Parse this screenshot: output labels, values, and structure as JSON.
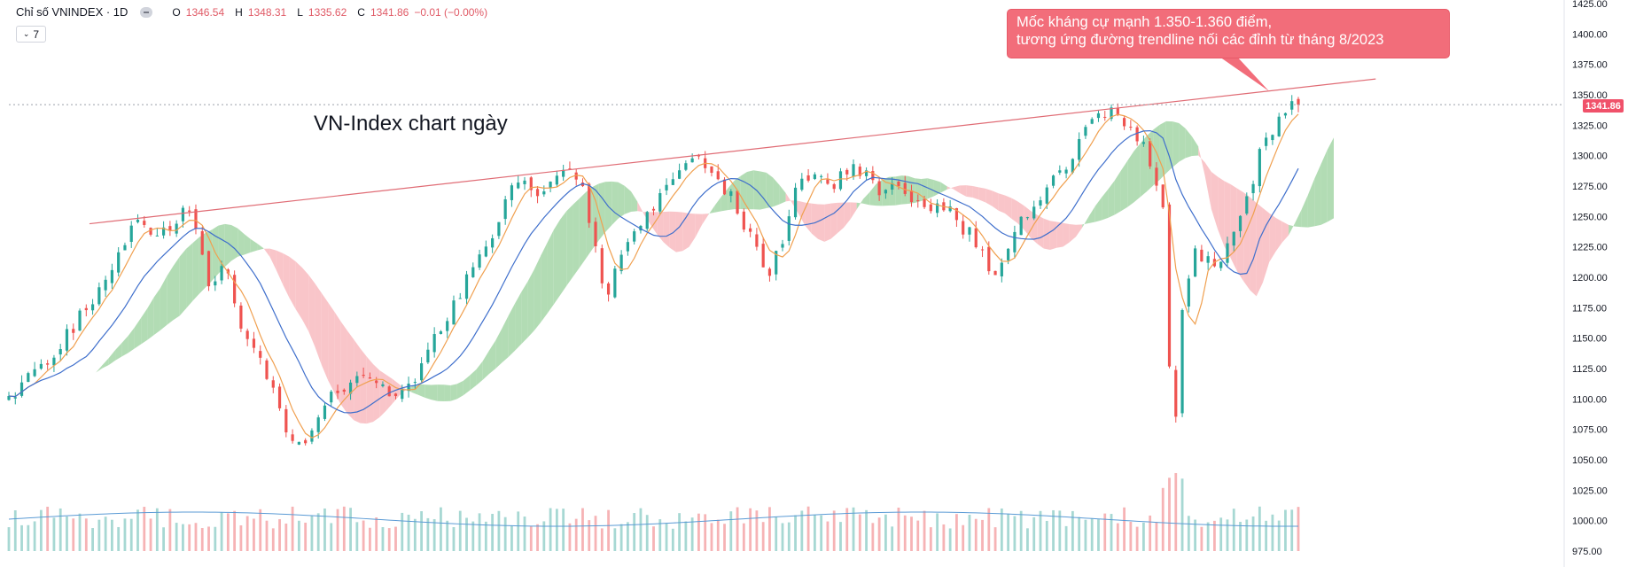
{
  "legend": {
    "symbol": "Chỉ số VNINDEX · 1D",
    "open_label": "O",
    "open": "1346.54",
    "high_label": "H",
    "high": "1348.31",
    "low_label": "L",
    "low": "1335.62",
    "close_label": "C",
    "close": "1341.86",
    "change": "−0.01 (−0.00%)"
  },
  "indicator_button": {
    "count": "7",
    "icon": "chevron-down-icon"
  },
  "watermark": "VN-Index chart ngày",
  "annotation": {
    "line1": "Mốc kháng cự mạnh 1.350-1.360 điểm,",
    "line2": "tương ứng đường trendline nối các đỉnh từ tháng 8/2023"
  },
  "last_price_label": "1341.86",
  "colors": {
    "up": "#26a69a",
    "down": "#ef5350",
    "up_cloud": "#a5d6a7",
    "down_cloud": "#f8bbc0",
    "ma_short": "#f0a050",
    "ma_long": "#3f6fcc",
    "trendline": "#e06c75",
    "callout": "#f26d7a"
  },
  "chart_data": {
    "type": "candlestick",
    "title": "Chỉ số VNINDEX · 1D",
    "ylim": [
      975,
      1425
    ],
    "y_ticks": [
      "1425.00",
      "1400.00",
      "1375.00",
      "1350.00",
      "1325.00",
      "1300.00",
      "1275.00",
      "1250.00",
      "1225.00",
      "1200.00",
      "1175.00",
      "1150.00",
      "1125.00",
      "1100.00",
      "1075.00",
      "1050.00",
      "1025.00",
      "1000.00",
      "975.00"
    ],
    "last_close": 1341.86,
    "close_path_anchors": [
      [
        0,
        1100
      ],
      [
        14,
        1125
      ],
      [
        28,
        1135
      ],
      [
        45,
        1170
      ],
      [
        58,
        1190
      ],
      [
        72,
        1230
      ],
      [
        80,
        1245
      ],
      [
        92,
        1235
      ],
      [
        102,
        1245
      ],
      [
        110,
        1255
      ],
      [
        118,
        1235
      ],
      [
        124,
        1195
      ],
      [
        134,
        1210
      ],
      [
        142,
        1165
      ],
      [
        150,
        1145
      ],
      [
        162,
        1115
      ],
      [
        171,
        1080
      ],
      [
        178,
        1060
      ],
      [
        185,
        1070
      ],
      [
        196,
        1100
      ],
      [
        208,
        1105
      ],
      [
        220,
        1125
      ],
      [
        232,
        1115
      ],
      [
        240,
        1100
      ],
      [
        250,
        1115
      ],
      [
        258,
        1135
      ],
      [
        270,
        1165
      ],
      [
        285,
        1200
      ],
      [
        300,
        1230
      ],
      [
        310,
        1270
      ],
      [
        318,
        1285
      ],
      [
        330,
        1265
      ],
      [
        338,
        1285
      ],
      [
        348,
        1290
      ],
      [
        358,
        1265
      ],
      [
        364,
        1220
      ],
      [
        370,
        1180
      ],
      [
        378,
        1210
      ],
      [
        388,
        1240
      ],
      [
        398,
        1255
      ],
      [
        410,
        1280
      ],
      [
        418,
        1285
      ],
      [
        426,
        1300
      ],
      [
        436,
        1280
      ],
      [
        446,
        1270
      ],
      [
        454,
        1250
      ],
      [
        464,
        1220
      ],
      [
        470,
        1195
      ],
      [
        480,
        1230
      ],
      [
        490,
        1280
      ],
      [
        500,
        1285
      ],
      [
        510,
        1275
      ],
      [
        520,
        1290
      ],
      [
        530,
        1285
      ],
      [
        540,
        1270
      ],
      [
        548,
        1275
      ],
      [
        558,
        1265
      ],
      [
        566,
        1255
      ],
      [
        574,
        1260
      ],
      [
        584,
        1255
      ],
      [
        592,
        1240
      ],
      [
        598,
        1235
      ],
      [
        608,
        1205
      ],
      [
        616,
        1210
      ],
      [
        624,
        1240
      ],
      [
        634,
        1255
      ],
      [
        640,
        1265
      ],
      [
        650,
        1285
      ],
      [
        660,
        1300
      ],
      [
        668,
        1325
      ],
      [
        676,
        1330
      ],
      [
        684,
        1335
      ],
      [
        694,
        1320
      ],
      [
        706,
        1305
      ],
      [
        716,
        1260
      ],
      [
        720,
        1130
      ],
      [
        724,
        1080
      ],
      [
        728,
        1175
      ],
      [
        736,
        1220
      ],
      [
        746,
        1215
      ],
      [
        752,
        1210
      ],
      [
        760,
        1240
      ],
      [
        768,
        1265
      ],
      [
        776,
        1300
      ],
      [
        782,
        1318
      ],
      [
        788,
        1328
      ],
      [
        796,
        1340
      ],
      [
        800,
        1342
      ]
    ],
    "overlays": [
      "MA short (orange)",
      "MA long (blue)",
      "Ichimoku cloud",
      "Volume bars",
      "Volume MA"
    ],
    "trendline_from": {
      "x_index": 50,
      "y": 1244
    },
    "trendline_to": {
      "x_index": 848,
      "y": 1363
    }
  }
}
